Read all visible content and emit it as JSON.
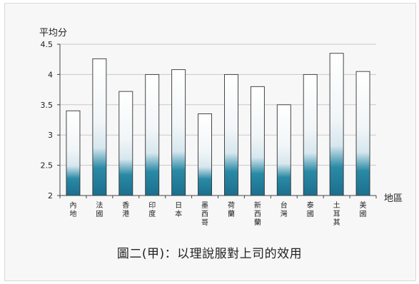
{
  "chart_data": {
    "type": "bar",
    "ylabel": "平均分",
    "xlabel": "地區",
    "ylim": [
      2,
      4.5
    ],
    "yticks": [
      "2",
      "2.5",
      "3",
      "3.5",
      "4",
      "4.5"
    ],
    "categories": [
      "內地",
      "法國",
      "香港",
      "印度",
      "日本",
      "墨西哥",
      "荷蘭",
      "新西蘭",
      "台灣",
      "泰國",
      "土耳其",
      "美國"
    ],
    "values": [
      3.4,
      4.26,
      3.72,
      4.0,
      4.08,
      3.35,
      4.0,
      3.8,
      3.5,
      4.0,
      4.35,
      4.05
    ],
    "caption": "圖二(甲)：以理說服對上司的效用",
    "gradient": {
      "top": "#ffffff",
      "mid": "#d7e7ee",
      "low": "#2a8aa5",
      "bottom": "#1b6f8e"
    }
  }
}
